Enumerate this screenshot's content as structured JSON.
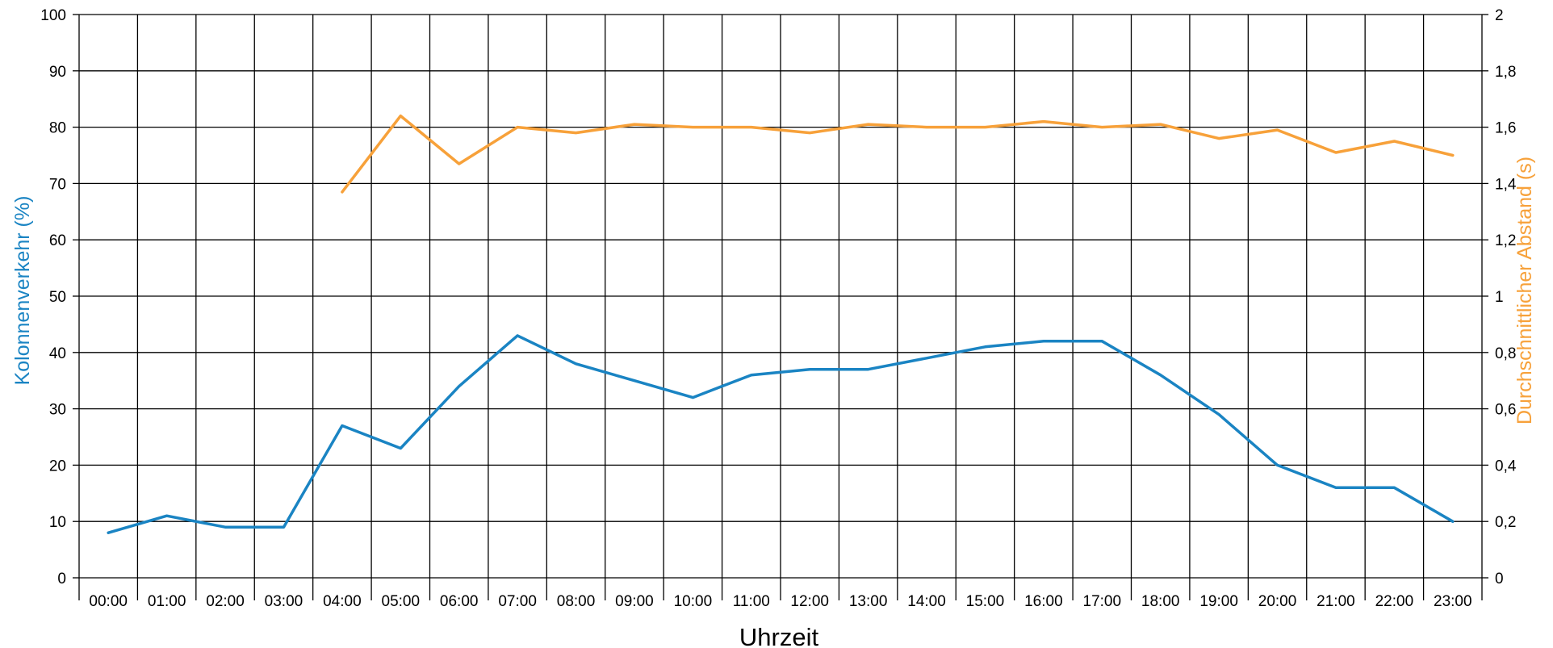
{
  "chart_data": {
    "type": "line",
    "title": "",
    "xlabel": "Uhrzeit",
    "ylabel": "Kolonnenverkehr (%)",
    "y2label": "Durchschnittlicher Abstand (s)",
    "categories": [
      "00:00",
      "01:00",
      "02:00",
      "03:00",
      "04:00",
      "05:00",
      "06:00",
      "07:00",
      "08:00",
      "09:00",
      "10:00",
      "11:00",
      "12:00",
      "13:00",
      "14:00",
      "15:00",
      "16:00",
      "17:00",
      "18:00",
      "19:00",
      "20:00",
      "21:00",
      "22:00",
      "23:00"
    ],
    "ylim": [
      0,
      100
    ],
    "yticks": [
      "0",
      "10",
      "20",
      "30",
      "40",
      "50",
      "60",
      "70",
      "80",
      "90",
      "100"
    ],
    "y2lim": [
      0,
      2
    ],
    "y2ticks": [
      "0",
      "0,2",
      "0,4",
      "0,6",
      "0,8",
      "1",
      "1,2",
      "1,4",
      "1,6",
      "1,8",
      "2"
    ],
    "grid": true,
    "series": [
      {
        "axis": "left",
        "color": "#1a84c3",
        "values": [
          8,
          11,
          9,
          9,
          27,
          23,
          34,
          43,
          38,
          35,
          32,
          36,
          37,
          37,
          39,
          41,
          42,
          42,
          36,
          29,
          20,
          16,
          16,
          10
        ]
      },
      {
        "axis": "right",
        "color": "#f7a13a",
        "values": [
          null,
          null,
          null,
          null,
          1.37,
          1.64,
          1.47,
          1.6,
          1.58,
          1.61,
          1.6,
          1.6,
          1.58,
          1.61,
          1.6,
          1.6,
          1.62,
          1.6,
          1.61,
          1.56,
          1.59,
          1.51,
          1.55,
          1.5
        ]
      }
    ],
    "colors": {
      "left_axis_title": "#1a84c3",
      "right_axis_title": "#f7a13a",
      "grid": "#000000"
    }
  }
}
